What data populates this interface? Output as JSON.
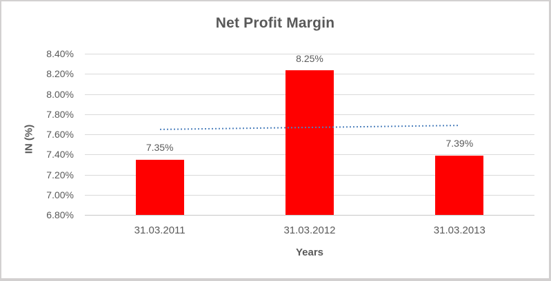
{
  "chart_data": {
    "type": "bar",
    "title": "Net Profit Margin",
    "xlabel": "Years",
    "ylabel": "IN (%)",
    "categories": [
      "31.03.2011",
      "31.03.2012",
      "31.03.2013"
    ],
    "values": [
      7.35,
      8.25,
      7.39
    ],
    "data_labels": [
      "7.35%",
      "8.25%",
      "7.39%"
    ],
    "ylim": [
      6.8,
      8.4
    ],
    "ytick_step": 0.2,
    "yticks": [
      "8.40%",
      "8.20%",
      "8.00%",
      "7.80%",
      "7.60%",
      "7.40%",
      "7.20%",
      "7.00%",
      "6.80%"
    ],
    "grid": true,
    "legend": "none",
    "bar_color": "#ff0000",
    "text_color": "#595959",
    "gridline_color": "#d9d9d9",
    "trendline": {
      "kind": "linear",
      "style": "dotted",
      "color": "#4e81bd",
      "start_value": 7.645,
      "end_value": 7.685,
      "span": "first-to-last-category-center"
    }
  }
}
